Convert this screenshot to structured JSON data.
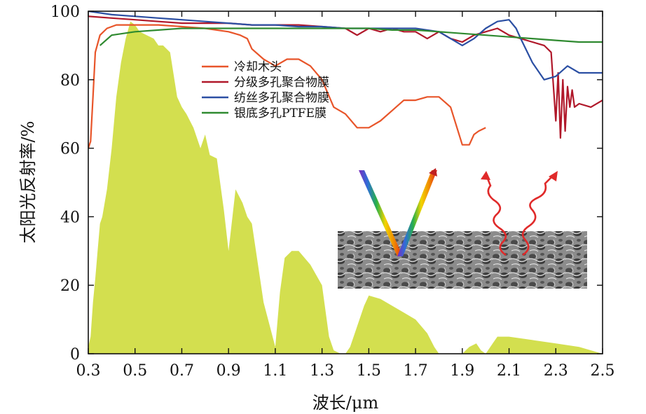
{
  "chart_data": {
    "type": "line",
    "title": "",
    "xlabel": "波长/μm",
    "ylabel": "太阳光反射率/%",
    "xlim": [
      0.3,
      2.5
    ],
    "ylim": [
      0,
      100
    ],
    "x_ticks": [
      0.3,
      0.5,
      0.7,
      0.9,
      1.1,
      1.3,
      1.5,
      1.7,
      1.9,
      2.1,
      2.3,
      2.5
    ],
    "x_tick_labels": [
      "0.3",
      "0.5",
      "0.7",
      "0.9",
      "1.1",
      "1.3",
      "1.5",
      "1.7",
      "1.9",
      "2.1",
      "2.3",
      "2.5"
    ],
    "y_ticks": [
      0,
      20,
      40,
      60,
      80,
      100
    ],
    "y_tick_labels": [
      "0",
      "20",
      "40",
      "60",
      "80",
      "100"
    ],
    "grid": false,
    "legend_position": "top-left",
    "series": [
      {
        "name": "冷却木头",
        "color": "#e8552a",
        "x": [
          0.3,
          0.31,
          0.32,
          0.33,
          0.35,
          0.38,
          0.42,
          0.5,
          0.6,
          0.7,
          0.8,
          0.9,
          0.95,
          0.98,
          1.0,
          1.05,
          1.1,
          1.15,
          1.2,
          1.25,
          1.3,
          1.35,
          1.4,
          1.45,
          1.5,
          1.55,
          1.6,
          1.65,
          1.7,
          1.75,
          1.8,
          1.85,
          1.9,
          1.93,
          1.95,
          1.97,
          2.0
        ],
        "y": [
          60,
          62,
          75,
          88,
          93,
          95,
          96,
          96,
          96,
          95.5,
          95,
          94,
          93,
          92,
          89,
          86,
          84,
          86,
          86,
          84,
          80,
          72,
          70,
          66,
          66,
          68,
          71,
          74,
          74,
          75,
          75,
          72,
          61,
          61,
          64,
          65,
          66
        ]
      },
      {
        "name": "分级多孔聚合物膜",
        "color": "#b0182a",
        "x": [
          0.3,
          0.4,
          0.5,
          0.6,
          0.7,
          0.8,
          0.9,
          1.0,
          1.1,
          1.2,
          1.3,
          1.4,
          1.45,
          1.5,
          1.55,
          1.6,
          1.65,
          1.7,
          1.75,
          1.8,
          1.85,
          1.9,
          1.95,
          2.0,
          2.05,
          2.1,
          2.15,
          2.2,
          2.25,
          2.28,
          2.29,
          2.3,
          2.31,
          2.32,
          2.33,
          2.34,
          2.35,
          2.36,
          2.37,
          2.38,
          2.4,
          2.45,
          2.5
        ],
        "y": [
          98.5,
          98,
          97.5,
          97,
          96.5,
          96.5,
          96.5,
          96,
          96,
          96,
          95.5,
          95,
          93,
          95,
          94,
          95,
          94,
          94,
          92,
          94,
          92,
          91,
          93,
          94,
          95,
          93,
          92,
          91,
          90,
          88,
          78,
          68,
          82,
          63,
          80,
          65,
          78,
          72,
          77,
          72,
          73,
          72,
          74
        ]
      },
      {
        "name": "纺丝多孔聚合物膜",
        "color": "#2b4fa3",
        "x": [
          0.3,
          0.4,
          0.5,
          0.6,
          0.7,
          0.8,
          0.9,
          1.0,
          1.1,
          1.2,
          1.3,
          1.4,
          1.5,
          1.6,
          1.7,
          1.8,
          1.85,
          1.9,
          1.95,
          2.0,
          2.05,
          2.1,
          2.13,
          2.15,
          2.2,
          2.25,
          2.3,
          2.35,
          2.4,
          2.45,
          2.5
        ],
        "y": [
          100,
          99,
          98.5,
          98,
          97.5,
          97,
          96.5,
          96,
          96,
          95.5,
          95.5,
          95,
          95,
          95,
          95,
          94,
          92,
          90,
          92,
          95,
          97,
          97.5,
          95,
          92,
          85,
          80,
          81,
          84,
          82,
          82,
          82
        ]
      },
      {
        "name": "银底多孔PTFE膜",
        "color": "#2f8a30",
        "x": [
          0.35,
          0.4,
          0.5,
          0.6,
          0.7,
          0.8,
          0.9,
          1.0,
          1.1,
          1.2,
          1.3,
          1.4,
          1.5,
          1.6,
          1.7,
          1.8,
          1.9,
          2.0,
          2.1,
          2.2,
          2.3,
          2.4,
          2.5
        ],
        "y": [
          90,
          93,
          94,
          94.5,
          95,
          95,
          95,
          95,
          95,
          95,
          95,
          95,
          95,
          94.5,
          94.5,
          94,
          93.5,
          93,
          92.5,
          92,
          91.5,
          91,
          91
        ]
      }
    ],
    "solar_spectrum": {
      "color": "#d3df4f",
      "x": [
        0.3,
        0.31,
        0.32,
        0.33,
        0.34,
        0.35,
        0.36,
        0.38,
        0.4,
        0.42,
        0.44,
        0.46,
        0.48,
        0.5,
        0.52,
        0.55,
        0.58,
        0.6,
        0.62,
        0.65,
        0.68,
        0.7,
        0.72,
        0.75,
        0.78,
        0.8,
        0.82,
        0.85,
        0.88,
        0.9,
        0.93,
        0.96,
        0.98,
        1.0,
        1.05,
        1.1,
        1.12,
        1.14,
        1.17,
        1.2,
        1.25,
        1.3,
        1.33,
        1.35,
        1.38,
        1.4,
        1.42,
        1.45,
        1.48,
        1.5,
        1.55,
        1.6,
        1.65,
        1.7,
        1.75,
        1.78,
        1.8,
        1.85,
        1.9,
        1.93,
        1.96,
        1.98,
        2.0,
        2.03,
        2.05,
        2.1,
        2.2,
        2.3,
        2.4,
        2.45,
        2.5
      ],
      "y": [
        2,
        5,
        15,
        22,
        30,
        38,
        40,
        48,
        60,
        75,
        85,
        92,
        97,
        96,
        94,
        93,
        92,
        90,
        90,
        88,
        75,
        72,
        70,
        66,
        60,
        64,
        58,
        57,
        42,
        30,
        48,
        44,
        40,
        38,
        15,
        2,
        18,
        28,
        30,
        30,
        26,
        20,
        5,
        1,
        0,
        0,
        2,
        8,
        14,
        17,
        16,
        14,
        12,
        10,
        6,
        2,
        0,
        0,
        0,
        2,
        3,
        1,
        0,
        3,
        5,
        5,
        4,
        3,
        2,
        1,
        0
      ]
    },
    "inset": {
      "description_visible_text": ""
    }
  }
}
